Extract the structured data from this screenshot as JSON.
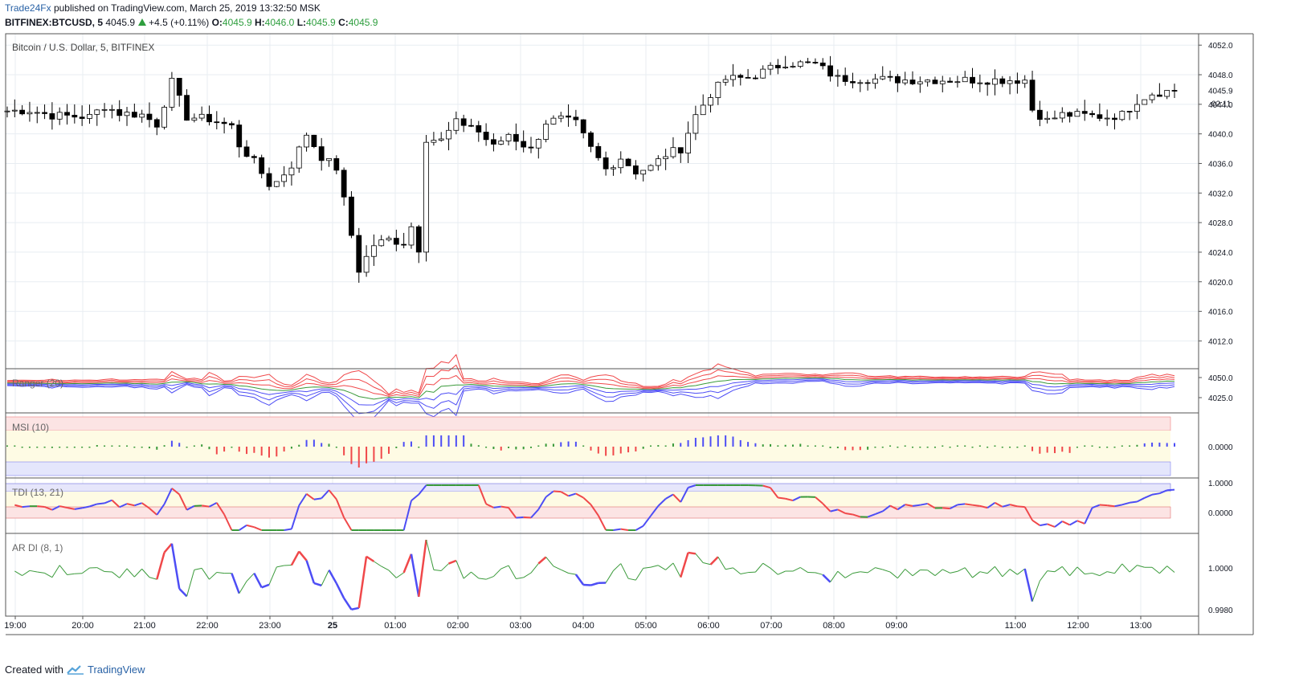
{
  "header": {
    "author": "Trade24Fx",
    "published": "published on TradingView.com, March 25, 2019 13:32:50 MSK",
    "symbol": "BITFINEX:BTCUSD, 5",
    "last": "4045.9",
    "change": "+4.5 (+0.11%)",
    "o_label": "O:",
    "o": "4045.9",
    "h_label": "H:",
    "h": "4046.0",
    "l_label": "L:",
    "l": "4045.9",
    "c_label": "C:",
    "c": "4045.9"
  },
  "footer": {
    "created": "Created with",
    "brand": "TradingView"
  },
  "colors": {
    "bull_body": "#ffffff",
    "bear_body": "#000000",
    "grid": "#e8edf2",
    "red": "#f0484a",
    "blue": "#4d4df5",
    "green": "#3a9a3a"
  },
  "chart_data": [
    {
      "type": "candlestick",
      "title": "Bitcoin / U.S. Dollar, 5, BITFINEX",
      "ylim": [
        4009,
        4053
      ],
      "yticks": [
        "4052.0",
        "4048.0",
        "4044.0",
        "4040.0",
        "4036.0",
        "4032.0",
        "4028.0",
        "4024.0",
        "4020.0",
        "4016.0",
        "4012.0"
      ],
      "price_label": "4045.9",
      "countdown_label": "02:11",
      "xticks": [
        "19:00",
        "20:00",
        "21:00",
        "22:00",
        "23:00",
        "25",
        "01:00",
        "02:00",
        "03:00",
        "04:00",
        "05:00",
        "06:00",
        "07:00",
        "08:00",
        "09:00",
        "11:00",
        "12:00",
        "13:00"
      ],
      "close_path": [
        [
          0,
          4043.1
        ],
        [
          3,
          4043.2
        ],
        [
          6,
          4042.5
        ],
        [
          11,
          4042.3
        ],
        [
          13,
          4043.8
        ],
        [
          15,
          4042.8
        ],
        [
          18,
          4042.6
        ],
        [
          20,
          4041.3
        ],
        [
          22,
          4047.0
        ],
        [
          24,
          4042.3
        ],
        [
          27,
          4042.0
        ],
        [
          30,
          4041.0
        ],
        [
          31,
          4038.5
        ],
        [
          33,
          4036.2
        ],
        [
          35,
          4033.2
        ],
        [
          36,
          4033.5
        ],
        [
          38,
          4035.8
        ],
        [
          40,
          4040.0
        ],
        [
          42,
          4036.9
        ],
        [
          44,
          4035.4
        ],
        [
          45,
          4031.0
        ],
        [
          47,
          4021.6
        ],
        [
          49,
          4025.0
        ],
        [
          51,
          4025.7
        ],
        [
          53,
          4025.3
        ],
        [
          54,
          4027.5
        ],
        [
          55,
          4024.5
        ],
        [
          56,
          4039.4
        ],
        [
          58,
          4039.1
        ],
        [
          60,
          4041.5
        ],
        [
          62,
          4041.2
        ],
        [
          64,
          4039.3
        ],
        [
          65,
          4038.2
        ],
        [
          67,
          4040.0
        ],
        [
          70,
          4037.8
        ],
        [
          72,
          4041.6
        ],
        [
          74,
          4042.0
        ],
        [
          76,
          4041.4
        ],
        [
          78,
          4038.0
        ],
        [
          80,
          4035.2
        ],
        [
          82,
          4036.8
        ],
        [
          84,
          4034.9
        ],
        [
          86,
          4035.5
        ],
        [
          88,
          4037.2
        ],
        [
          90,
          4038.0
        ],
        [
          92,
          4042.5
        ],
        [
          94,
          4045.4
        ],
        [
          96,
          4047.4
        ],
        [
          99,
          4047.6
        ],
        [
          101,
          4048.4
        ],
        [
          104,
          4049.6
        ],
        [
          108,
          4049.4
        ],
        [
          111,
          4047.5
        ],
        [
          120,
          4047.3
        ],
        [
          136,
          4047.3
        ],
        [
          137,
          4043.3
        ],
        [
          139,
          4041.8
        ],
        [
          141,
          4042.6
        ],
        [
          144,
          4042.5
        ],
        [
          147,
          4042.3
        ],
        [
          149,
          4042.6
        ],
        [
          151,
          4044.5
        ],
        [
          153,
          4045.5
        ],
        [
          156,
          4045.9
        ]
      ],
      "note": "approximate OHLC candles (5-minute), values in USD"
    },
    {
      "type": "line",
      "title": "Ranger (20)",
      "ylim": [
        4010,
        4057
      ],
      "yticks": [
        "4050.0",
        "4025.0"
      ]
    },
    {
      "type": "bar",
      "title": "MSI (10)",
      "yticks": [
        "0.0000"
      ]
    },
    {
      "type": "line",
      "title": "TDI (13, 21)",
      "yticks": [
        "1.0000",
        "0.0000"
      ]
    },
    {
      "type": "line",
      "title": "AR DI (8, 1)",
      "yticks": [
        "1.0000",
        "0.9980"
      ]
    }
  ]
}
